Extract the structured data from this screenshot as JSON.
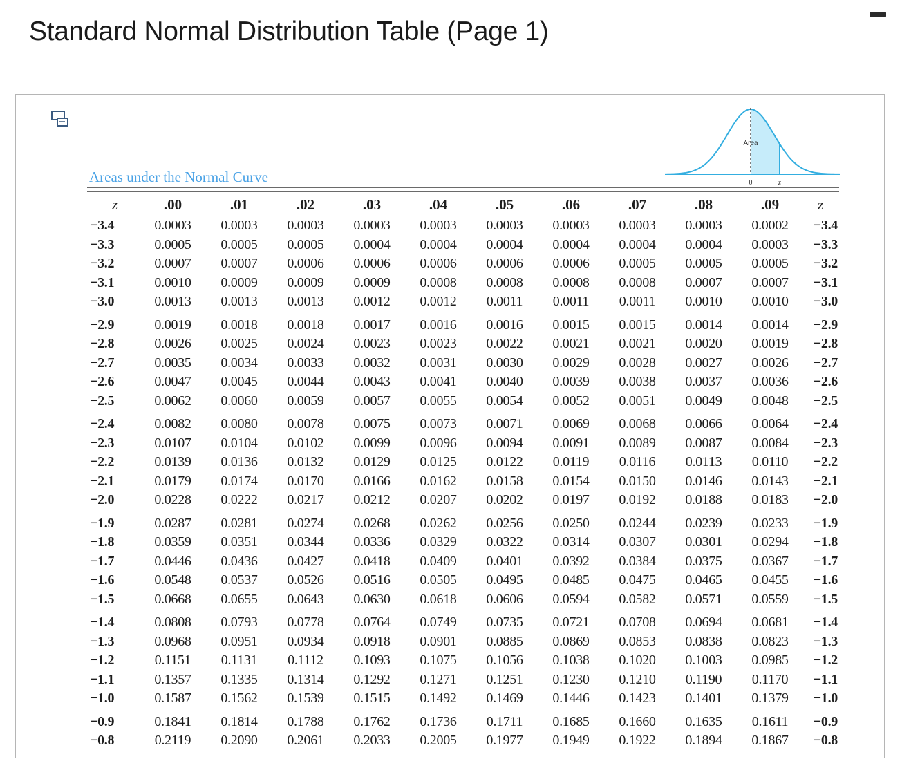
{
  "title": "Standard Normal Distribution Table (Page 1)",
  "caption": "Areas under the Normal Curve",
  "curve": {
    "area_label": "Area",
    "origin_label": "0",
    "z_label": "z",
    "fill_color": "#c6ecfa",
    "stroke_color": "#34aee0"
  },
  "colors": {
    "caption": "#4ba3e6",
    "text": "#1e1e1e",
    "rule": "#6a6a6a"
  },
  "icons": {
    "expand": "expand-icon",
    "minimize": "minimize-icon"
  },
  "table": {
    "z_header": "z",
    "columns": [
      ".00",
      ".01",
      ".02",
      ".03",
      ".04",
      ".05",
      ".06",
      ".07",
      ".08",
      ".09"
    ],
    "groups": [
      [
        {
          "z": "−3.4",
          "values": [
            "0.0003",
            "0.0003",
            "0.0003",
            "0.0003",
            "0.0003",
            "0.0003",
            "0.0003",
            "0.0003",
            "0.0003",
            "0.0002"
          ]
        },
        {
          "z": "−3.3",
          "values": [
            "0.0005",
            "0.0005",
            "0.0005",
            "0.0004",
            "0.0004",
            "0.0004",
            "0.0004",
            "0.0004",
            "0.0004",
            "0.0003"
          ]
        },
        {
          "z": "−3.2",
          "values": [
            "0.0007",
            "0.0007",
            "0.0006",
            "0.0006",
            "0.0006",
            "0.0006",
            "0.0006",
            "0.0005",
            "0.0005",
            "0.0005"
          ]
        },
        {
          "z": "−3.1",
          "values": [
            "0.0010",
            "0.0009",
            "0.0009",
            "0.0009",
            "0.0008",
            "0.0008",
            "0.0008",
            "0.0008",
            "0.0007",
            "0.0007"
          ]
        },
        {
          "z": "−3.0",
          "values": [
            "0.0013",
            "0.0013",
            "0.0013",
            "0.0012",
            "0.0012",
            "0.0011",
            "0.0011",
            "0.0011",
            "0.0010",
            "0.0010"
          ]
        }
      ],
      [
        {
          "z": "−2.9",
          "values": [
            "0.0019",
            "0.0018",
            "0.0018",
            "0.0017",
            "0.0016",
            "0.0016",
            "0.0015",
            "0.0015",
            "0.0014",
            "0.0014"
          ]
        },
        {
          "z": "−2.8",
          "values": [
            "0.0026",
            "0.0025",
            "0.0024",
            "0.0023",
            "0.0023",
            "0.0022",
            "0.0021",
            "0.0021",
            "0.0020",
            "0.0019"
          ]
        },
        {
          "z": "−2.7",
          "values": [
            "0.0035",
            "0.0034",
            "0.0033",
            "0.0032",
            "0.0031",
            "0.0030",
            "0.0029",
            "0.0028",
            "0.0027",
            "0.0026"
          ]
        },
        {
          "z": "−2.6",
          "values": [
            "0.0047",
            "0.0045",
            "0.0044",
            "0.0043",
            "0.0041",
            "0.0040",
            "0.0039",
            "0.0038",
            "0.0037",
            "0.0036"
          ]
        },
        {
          "z": "−2.5",
          "values": [
            "0.0062",
            "0.0060",
            "0.0059",
            "0.0057",
            "0.0055",
            "0.0054",
            "0.0052",
            "0.0051",
            "0.0049",
            "0.0048"
          ]
        }
      ],
      [
        {
          "z": "−2.4",
          "values": [
            "0.0082",
            "0.0080",
            "0.0078",
            "0.0075",
            "0.0073",
            "0.0071",
            "0.0069",
            "0.0068",
            "0.0066",
            "0.0064"
          ]
        },
        {
          "z": "−2.3",
          "values": [
            "0.0107",
            "0.0104",
            "0.0102",
            "0.0099",
            "0.0096",
            "0.0094",
            "0.0091",
            "0.0089",
            "0.0087",
            "0.0084"
          ]
        },
        {
          "z": "−2.2",
          "values": [
            "0.0139",
            "0.0136",
            "0.0132",
            "0.0129",
            "0.0125",
            "0.0122",
            "0.0119",
            "0.0116",
            "0.0113",
            "0.0110"
          ]
        },
        {
          "z": "−2.1",
          "values": [
            "0.0179",
            "0.0174",
            "0.0170",
            "0.0166",
            "0.0162",
            "0.0158",
            "0.0154",
            "0.0150",
            "0.0146",
            "0.0143"
          ]
        },
        {
          "z": "−2.0",
          "values": [
            "0.0228",
            "0.0222",
            "0.0217",
            "0.0212",
            "0.0207",
            "0.0202",
            "0.0197",
            "0.0192",
            "0.0188",
            "0.0183"
          ]
        }
      ],
      [
        {
          "z": "−1.9",
          "values": [
            "0.0287",
            "0.0281",
            "0.0274",
            "0.0268",
            "0.0262",
            "0.0256",
            "0.0250",
            "0.0244",
            "0.0239",
            "0.0233"
          ]
        },
        {
          "z": "−1.8",
          "values": [
            "0.0359",
            "0.0351",
            "0.0344",
            "0.0336",
            "0.0329",
            "0.0322",
            "0.0314",
            "0.0307",
            "0.0301",
            "0.0294"
          ]
        },
        {
          "z": "−1.7",
          "values": [
            "0.0446",
            "0.0436",
            "0.0427",
            "0.0418",
            "0.0409",
            "0.0401",
            "0.0392",
            "0.0384",
            "0.0375",
            "0.0367"
          ]
        },
        {
          "z": "−1.6",
          "values": [
            "0.0548",
            "0.0537",
            "0.0526",
            "0.0516",
            "0.0505",
            "0.0495",
            "0.0485",
            "0.0475",
            "0.0465",
            "0.0455"
          ]
        },
        {
          "z": "−1.5",
          "values": [
            "0.0668",
            "0.0655",
            "0.0643",
            "0.0630",
            "0.0618",
            "0.0606",
            "0.0594",
            "0.0582",
            "0.0571",
            "0.0559"
          ]
        }
      ],
      [
        {
          "z": "−1.4",
          "values": [
            "0.0808",
            "0.0793",
            "0.0778",
            "0.0764",
            "0.0749",
            "0.0735",
            "0.0721",
            "0.0708",
            "0.0694",
            "0.0681"
          ]
        },
        {
          "z": "−1.3",
          "values": [
            "0.0968",
            "0.0951",
            "0.0934",
            "0.0918",
            "0.0901",
            "0.0885",
            "0.0869",
            "0.0853",
            "0.0838",
            "0.0823"
          ]
        },
        {
          "z": "−1.2",
          "values": [
            "0.1151",
            "0.1131",
            "0.1112",
            "0.1093",
            "0.1075",
            "0.1056",
            "0.1038",
            "0.1020",
            "0.1003",
            "0.0985"
          ]
        },
        {
          "z": "−1.1",
          "values": [
            "0.1357",
            "0.1335",
            "0.1314",
            "0.1292",
            "0.1271",
            "0.1251",
            "0.1230",
            "0.1210",
            "0.1190",
            "0.1170"
          ]
        },
        {
          "z": "−1.0",
          "values": [
            "0.1587",
            "0.1562",
            "0.1539",
            "0.1515",
            "0.1492",
            "0.1469",
            "0.1446",
            "0.1423",
            "0.1401",
            "0.1379"
          ]
        }
      ],
      [
        {
          "z": "−0.9",
          "values": [
            "0.1841",
            "0.1814",
            "0.1788",
            "0.1762",
            "0.1736",
            "0.1711",
            "0.1685",
            "0.1660",
            "0.1635",
            "0.1611"
          ]
        },
        {
          "z": "−0.8",
          "values": [
            "0.2119",
            "0.2090",
            "0.2061",
            "0.2033",
            "0.2005",
            "0.1977",
            "0.1949",
            "0.1922",
            "0.1894",
            "0.1867"
          ]
        }
      ]
    ]
  }
}
